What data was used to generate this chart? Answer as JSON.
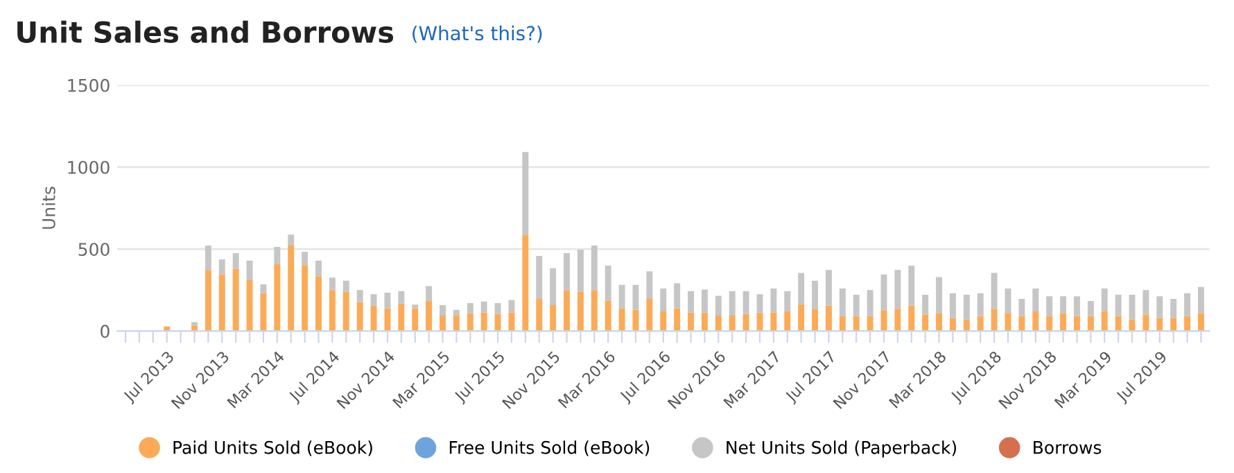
{
  "chart_data": {
    "type": "bar",
    "stacked": true,
    "title": "Unit Sales and Borrows",
    "subtitle": "(What's this?)",
    "ylabel": "Units",
    "categories": [
      null,
      null,
      null,
      "Jul 2013",
      null,
      null,
      null,
      "Nov 2013",
      null,
      null,
      null,
      "Mar 2014",
      null,
      null,
      null,
      "Jul 2014",
      null,
      null,
      null,
      "Nov 2014",
      null,
      null,
      null,
      "Mar 2015",
      null,
      null,
      null,
      "Jul 2015",
      null,
      null,
      null,
      "Nov 2015",
      null,
      null,
      null,
      "Mar 2016",
      null,
      null,
      null,
      "Jul 2016",
      null,
      null,
      null,
      "Nov 2016",
      null,
      null,
      null,
      "Mar 2017",
      null,
      null,
      null,
      "Jul 2017",
      null,
      null,
      null,
      "Nov 2017",
      null,
      null,
      null,
      "Mar 2018",
      null,
      null,
      null,
      "Jul 2018",
      null,
      null,
      null,
      "Nov 2018",
      null,
      null,
      null,
      "Mar 2019",
      null,
      null,
      null,
      "Jul 2019",
      null,
      null,
      null
    ],
    "series": [
      {
        "name": "Paid Units Sold (eBook)",
        "color": "#fbab57",
        "values": [
          0,
          0,
          0,
          28,
          0,
          35,
          373,
          345,
          380,
          310,
          231,
          411,
          522,
          402,
          335,
          250,
          240,
          177,
          155,
          139,
          168,
          139,
          187,
          95,
          98,
          108,
          114,
          104,
          114,
          589,
          196,
          158,
          250,
          240,
          250,
          187,
          139,
          130,
          196,
          120,
          139,
          114,
          114,
          95,
          95,
          104,
          114,
          114,
          120,
          165,
          133,
          155,
          92,
          92,
          92,
          127,
          136,
          155,
          101,
          111,
          79,
          70,
          92,
          136,
          111,
          92,
          120,
          92,
          111,
          92,
          92,
          123,
          92,
          70,
          101,
          79,
          79,
          92,
          111
        ]
      },
      {
        "name": "Free Units Sold (eBook)",
        "color": "#6fa3dc",
        "values": [
          0,
          0,
          0,
          0,
          0,
          0,
          0,
          0,
          0,
          0,
          0,
          0,
          0,
          0,
          0,
          0,
          0,
          0,
          0,
          0,
          0,
          0,
          0,
          0,
          0,
          0,
          0,
          0,
          0,
          0,
          0,
          0,
          0,
          0,
          0,
          0,
          0,
          0,
          0,
          0,
          0,
          0,
          0,
          0,
          0,
          0,
          0,
          0,
          0,
          0,
          0,
          0,
          0,
          0,
          0,
          0,
          0,
          0,
          0,
          0,
          0,
          0,
          0,
          0,
          0,
          0,
          0,
          0,
          0,
          0,
          0,
          0,
          0,
          0,
          0,
          0,
          0,
          0,
          0
        ]
      },
      {
        "name": "Net Units Sold (Paperback)",
        "color": "#c6c6c6",
        "values": [
          0,
          0,
          0,
          0,
          0,
          20,
          149,
          92,
          95,
          120,
          54,
          102,
          67,
          82,
          95,
          76,
          67,
          73,
          70,
          95,
          76,
          22,
          88,
          63,
          32,
          63,
          66,
          67,
          76,
          503,
          263,
          225,
          225,
          257,
          272,
          212,
          143,
          152,
          168,
          140,
          152,
          130,
          139,
          120,
          149,
          140,
          111,
          146,
          124,
          190,
          174,
          218,
          168,
          130,
          158,
          218,
          237,
          244,
          121,
          218,
          152,
          152,
          139,
          219,
          149,
          104,
          140,
          120,
          101,
          120,
          92,
          137,
          130,
          152,
          149,
          133,
          117,
          139,
          158
        ]
      },
      {
        "name": "Borrows",
        "color": "#d4704e",
        "values": [
          0,
          0,
          0,
          0,
          0,
          0,
          0,
          0,
          0,
          0,
          0,
          0,
          0,
          0,
          0,
          0,
          0,
          0,
          0,
          0,
          0,
          0,
          0,
          0,
          0,
          0,
          0,
          0,
          0,
          0,
          0,
          0,
          0,
          0,
          0,
          0,
          0,
          0,
          0,
          0,
          0,
          0,
          0,
          0,
          0,
          0,
          0,
          0,
          0,
          0,
          0,
          0,
          0,
          0,
          0,
          0,
          0,
          0,
          0,
          0,
          0,
          0,
          0,
          0,
          0,
          0,
          0,
          0,
          0,
          0,
          0,
          0,
          0,
          0,
          0,
          0,
          0,
          0,
          0
        ]
      }
    ],
    "ylim": [
      0,
      1500
    ],
    "yticks": [
      0,
      500,
      1000,
      1500
    ],
    "grid": "y",
    "legend": "bottom",
    "marker": "circle"
  }
}
